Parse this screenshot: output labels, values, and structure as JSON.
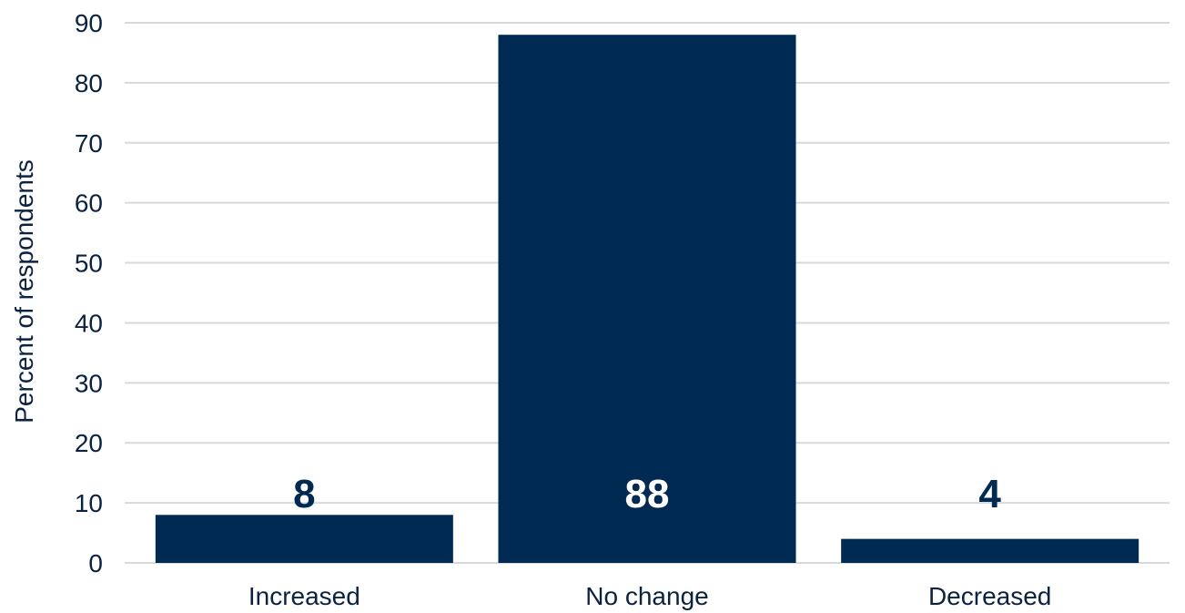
{
  "chart_data": {
    "type": "bar",
    "title": "",
    "xlabel": "",
    "ylabel": "Percent of respondents",
    "categories": [
      "Increased",
      "No change",
      "Decreased"
    ],
    "values": [
      8,
      88,
      4
    ],
    "data_labels": [
      "8",
      "88",
      "4"
    ],
    "ylim": [
      0,
      90
    ],
    "yticks": [
      0,
      10,
      20,
      30,
      40,
      50,
      60,
      70,
      80,
      90
    ],
    "ytick_labels": [
      "0",
      "10",
      "20",
      "30",
      "40",
      "50",
      "60",
      "70",
      "80",
      "90"
    ],
    "grid": true,
    "legend": "none",
    "colors": {
      "bar": "#002a52",
      "grid": "#d9d9d9",
      "text": "#0b2240",
      "label_on_bar": "#ffffff",
      "label_above_bar": "#002a52"
    }
  }
}
